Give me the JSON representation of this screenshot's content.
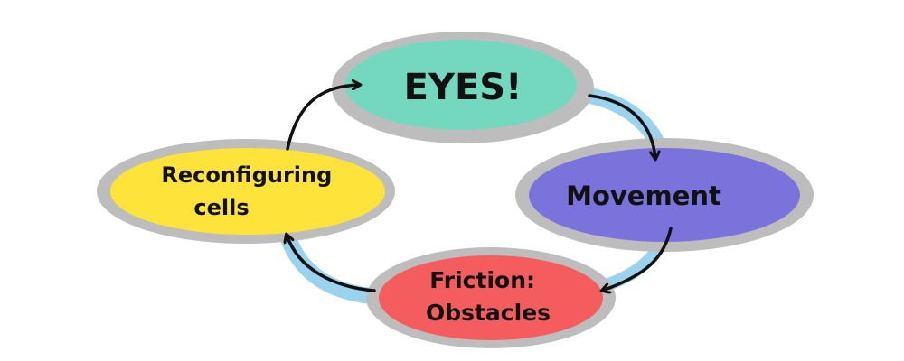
{
  "diagram": {
    "nodes": [
      {
        "id": "eyes",
        "lines": [
          "EYES!"
        ],
        "color": "#73d8be"
      },
      {
        "id": "movement",
        "lines": [
          "Movement"
        ],
        "color": "#7a73db"
      },
      {
        "id": "friction",
        "lines": [
          "Friction:",
          "Obstacles"
        ],
        "color": "#f45c5e"
      },
      {
        "id": "reconfiguring",
        "lines": [
          "Reconfiguring",
          "cells"
        ],
        "color": "#fde33a"
      }
    ],
    "edges": [
      {
        "from": "eyes",
        "to": "movement"
      },
      {
        "from": "movement",
        "to": "friction"
      },
      {
        "from": "friction",
        "to": "reconfiguring"
      },
      {
        "from": "reconfiguring",
        "to": "eyes"
      }
    ],
    "colors": {
      "outline": "#bdbdbd",
      "cycle_glow": "#9bd3ef",
      "arrow": "#111111"
    }
  }
}
